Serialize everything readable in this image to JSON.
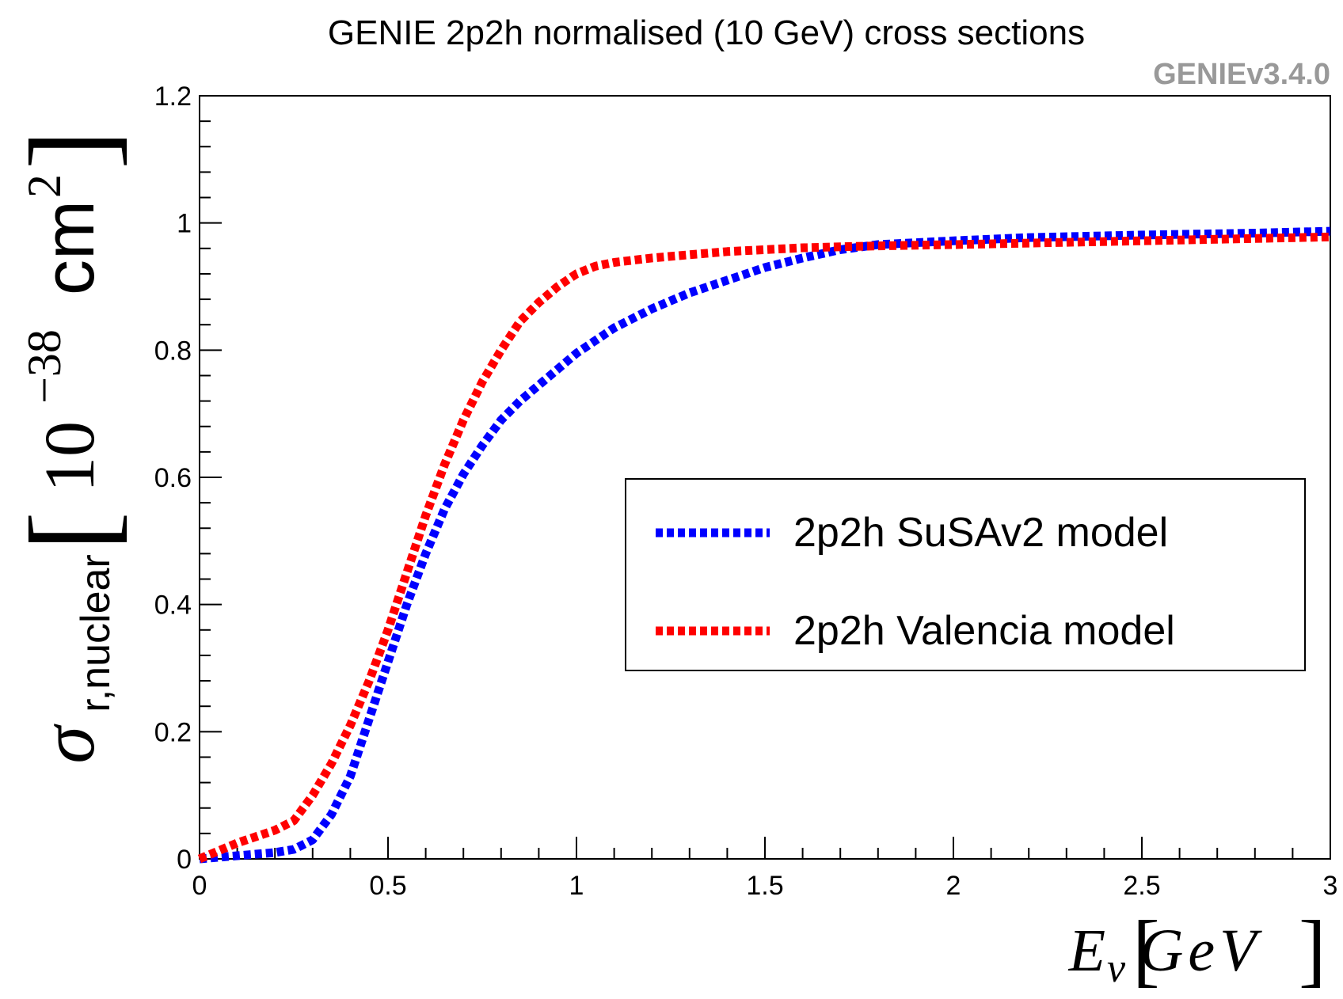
{
  "chart_data": {
    "type": "line",
    "title": "GENIE 2p2h normalised (10 GeV) cross sections",
    "version_label": "GENIEv3.4.0",
    "xlabel": {
      "symbol": "E",
      "subscript": "ν",
      "unit": "GeV"
    },
    "ylabel": {
      "symbol": "σ",
      "subscript": "r,nuclear",
      "unit_base": "10",
      "unit_exp": "−38",
      "unit_cm": "cm",
      "unit_cm_exp": "2"
    },
    "xlim": [
      0,
      3
    ],
    "ylim": [
      0,
      1.2
    ],
    "xticks": [
      0,
      0.5,
      1,
      1.5,
      2,
      2.5,
      3
    ],
    "xtick_labels": [
      "0",
      "0.5",
      "1",
      "1.5",
      "2",
      "2.5",
      "3"
    ],
    "yticks": [
      0,
      0.2,
      0.4,
      0.6,
      0.8,
      1,
      1.2
    ],
    "ytick_labels": [
      "0",
      "0.2",
      "0.4",
      "0.6",
      "0.8",
      "1",
      "1.2"
    ],
    "legend_position": "right-middle",
    "series": [
      {
        "name": "2p2h SuSAv2 model",
        "color": "#0000ff",
        "x": [
          0,
          0.1,
          0.2,
          0.25,
          0.3,
          0.35,
          0.4,
          0.45,
          0.5,
          0.55,
          0.6,
          0.65,
          0.7,
          0.75,
          0.8,
          0.85,
          0.9,
          1.0,
          1.1,
          1.2,
          1.3,
          1.4,
          1.5,
          1.6,
          1.7,
          1.8,
          2.0,
          2.2,
          2.5,
          2.8,
          3.0
        ],
        "y": [
          0,
          0.005,
          0.01,
          0.015,
          0.03,
          0.07,
          0.13,
          0.22,
          0.31,
          0.4,
          0.48,
          0.55,
          0.605,
          0.65,
          0.69,
          0.72,
          0.745,
          0.795,
          0.835,
          0.865,
          0.89,
          0.91,
          0.93,
          0.945,
          0.958,
          0.966,
          0.972,
          0.977,
          0.981,
          0.984,
          0.987
        ]
      },
      {
        "name": "2p2h Valencia model",
        "color": "#ff0000",
        "x": [
          0,
          0.1,
          0.2,
          0.25,
          0.3,
          0.35,
          0.4,
          0.45,
          0.5,
          0.55,
          0.6,
          0.65,
          0.7,
          0.75,
          0.8,
          0.85,
          0.9,
          0.95,
          1.0,
          1.05,
          1.1,
          1.2,
          1.3,
          1.4,
          1.5,
          1.6,
          1.8,
          2.0,
          2.5,
          3.0
        ],
        "y": [
          0,
          0.025,
          0.045,
          0.06,
          0.1,
          0.15,
          0.21,
          0.28,
          0.36,
          0.45,
          0.54,
          0.62,
          0.69,
          0.75,
          0.8,
          0.845,
          0.875,
          0.9,
          0.92,
          0.932,
          0.938,
          0.945,
          0.95,
          0.955,
          0.958,
          0.961,
          0.964,
          0.966,
          0.972,
          0.978
        ]
      }
    ]
  }
}
